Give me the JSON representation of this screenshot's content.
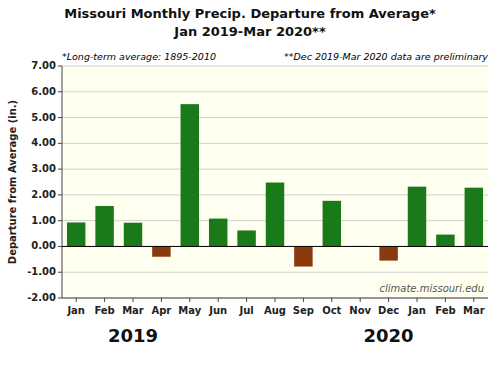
{
  "chart_data": {
    "type": "bar",
    "title": "Missouri Monthly Precip. Departure from Average*",
    "subtitle": "Jan 2019-Mar 2020**",
    "ylabel": "Departure from Average (in.)",
    "annotations": [
      "*Long-term average: 1895-2010",
      "**Dec 2019-Mar 2020 data are preliminary",
      "climate.missouri.edu",
      "2019",
      "2020"
    ],
    "categories": [
      "Jan",
      "Feb",
      "Mar",
      "Apr",
      "May",
      "Jun",
      "Jul",
      "Aug",
      "Sep",
      "Oct",
      "Nov",
      "Dec",
      "Jan",
      "Feb",
      "Mar"
    ],
    "values": [
      0.93,
      1.57,
      0.92,
      -0.4,
      5.52,
      1.08,
      0.62,
      2.48,
      -0.78,
      1.77,
      0.02,
      -0.55,
      2.32,
      0.46,
      2.28
    ],
    "colors": [
      "#1a7a1a",
      "#1a7a1a",
      "#1a7a1a",
      "#8B3A0F",
      "#1a7a1a",
      "#1a7a1a",
      "#1a7a1a",
      "#1a7a1a",
      "#8B3A0F",
      "#1a7a1a",
      "#1a7a1a",
      "#8B3A0F",
      "#1a7a1a",
      "#1a7a1a",
      "#1a7a1a"
    ],
    "ylim": [
      -2.0,
      7.0
    ],
    "yticks": [
      {
        "value": -2.0,
        "label": "-2.00"
      },
      {
        "value": -1.0,
        "label": "-1.00"
      },
      {
        "value": 0.0,
        "label": "0.00"
      },
      {
        "value": 1.0,
        "label": "1.00"
      },
      {
        "value": 2.0,
        "label": "2.00"
      },
      {
        "value": 3.0,
        "label": "3.00"
      },
      {
        "value": 4.0,
        "label": "4.00"
      },
      {
        "value": 5.0,
        "label": "5.00"
      },
      {
        "value": 6.0,
        "label": "6.00"
      },
      {
        "value": 7.0,
        "label": "7.00"
      }
    ],
    "grid": true
  }
}
